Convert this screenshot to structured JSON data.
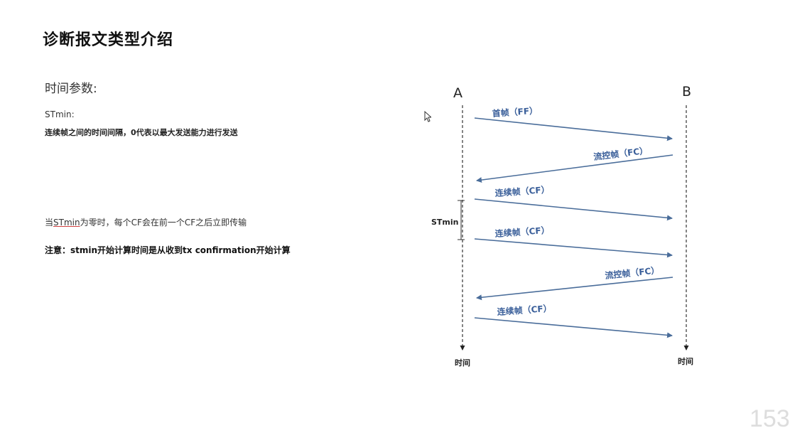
{
  "slide": {
    "title": "诊断报文类型介绍",
    "page_number": "153"
  },
  "content": {
    "section_heading": "时间参数:",
    "stmin_label": "STmin:",
    "stmin_desc": "连续帧之间的时间间隔，0代表以最大发送能力进行发送",
    "zero_note_prefix": "当",
    "zero_note_term": "STmin",
    "zero_note_suffix": "为零时，每个CF会在前一个CF之后立即传输",
    "attention_note": "注意：stmin开始计算时间是从收到tx confirmation开始计算"
  },
  "diagram": {
    "node_a": "A",
    "node_b": "B",
    "time_label_a": "时间",
    "time_label_b": "时间",
    "stmin_label": "STmin",
    "line_color": "#4a6d9a",
    "messages": [
      {
        "label": "首帧（FF）",
        "from": "A",
        "to": "B"
      },
      {
        "label": "流控帧（FC）",
        "from": "B",
        "to": "A"
      },
      {
        "label": "连续帧（CF）",
        "from": "A",
        "to": "B"
      },
      {
        "label": "连续帧（CF）",
        "from": "A",
        "to": "B"
      },
      {
        "label": "流控帧（FC）",
        "from": "B",
        "to": "A"
      },
      {
        "label": "连续帧（CF）",
        "from": "A",
        "to": "B"
      }
    ]
  },
  "icons": {
    "cursor": "mouse-pointer-icon"
  }
}
